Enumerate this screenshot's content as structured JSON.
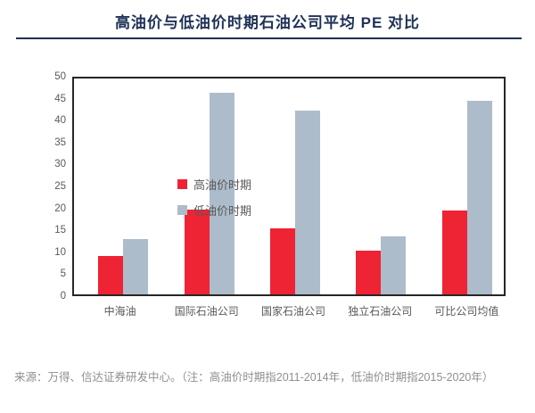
{
  "title": "高油价与低油价时期石油公司平均 PE 对比",
  "footer": {
    "source_note": "来源：万得、信达证券研发中心。（注：高油价时期指2011-2014年，低油价时期指2015-2020年）"
  },
  "colors": {
    "title_navy": "#1e3156",
    "high_period_red": "#ee2334",
    "low_period_gray": "#adbcca",
    "axis_text_gray": "#595959",
    "plot_border": "#262626",
    "footer_gray": "#8f8f8f"
  },
  "chart_data": {
    "type": "bar",
    "title": "高油价与低油价时期石油公司平均 PE 对比",
    "categories": [
      "中海油",
      "国际石油公司",
      "国家石油公司",
      "独立石油公司",
      "可比公司均值"
    ],
    "series": [
      {
        "name": "高油价时期",
        "color": "#ee2334",
        "values": [
          8.8,
          19.7,
          15.2,
          10.1,
          19.5
        ]
      },
      {
        "name": "低油价时期",
        "color": "#adbcca",
        "values": [
          12.9,
          46.8,
          42.5,
          13.4,
          44.9
        ]
      }
    ],
    "xlabel": "",
    "ylabel": "",
    "ylim": [
      0,
      50
    ],
    "ytick_step": 5,
    "grid": false,
    "legend_position": "inside-top-left"
  }
}
